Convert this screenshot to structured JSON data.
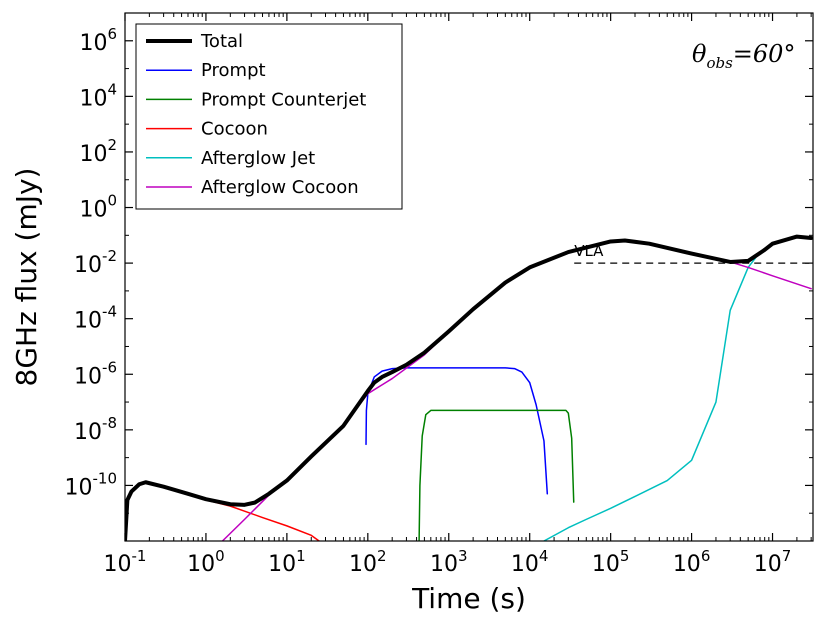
{
  "chart_data": {
    "type": "line",
    "xscale": "log",
    "yscale": "log",
    "xlabel": "Time (s)",
    "ylabel": "8GHz flux (mJy)",
    "xlim": [
      0.1,
      31622776
    ],
    "ylim": [
      1e-12,
      10000000.0
    ],
    "x_ticks": [
      {
        "value": 0.1,
        "base": "10",
        "exp": "-1"
      },
      {
        "value": 1,
        "base": "10",
        "exp": "0"
      },
      {
        "value": 10,
        "base": "10",
        "exp": "1"
      },
      {
        "value": 100,
        "base": "10",
        "exp": "2"
      },
      {
        "value": 1000,
        "base": "10",
        "exp": "3"
      },
      {
        "value": 10000,
        "base": "10",
        "exp": "4"
      },
      {
        "value": 100000,
        "base": "10",
        "exp": "5"
      },
      {
        "value": 1000000,
        "base": "10",
        "exp": "6"
      },
      {
        "value": 10000000,
        "base": "10",
        "exp": "7"
      }
    ],
    "y_ticks": [
      {
        "value": 1e-10,
        "base": "10",
        "exp": "-10"
      },
      {
        "value": 1e-08,
        "base": "10",
        "exp": "-8"
      },
      {
        "value": 1e-06,
        "base": "10",
        "exp": "-6"
      },
      {
        "value": 0.0001,
        "base": "10",
        "exp": "-4"
      },
      {
        "value": 0.01,
        "base": "10",
        "exp": "-2"
      },
      {
        "value": 1,
        "base": "10",
        "exp": "0"
      },
      {
        "value": 100,
        "base": "10",
        "exp": "2"
      },
      {
        "value": 10000,
        "base": "10",
        "exp": "4"
      },
      {
        "value": 1000000,
        "base": "10",
        "exp": "6"
      }
    ],
    "annotation": {
      "symbol": "θ",
      "sub": "obs",
      "text": "=60°"
    },
    "reference_line": {
      "label": "VLA",
      "y": 0.01,
      "x_start": 35481,
      "x_end": 31622776
    },
    "series": [
      {
        "name": "Total",
        "color": "#000000",
        "width": 4,
        "points": [
          [
            0.1,
            1e-12
          ],
          [
            0.107,
            3e-11
          ],
          [
            0.12,
            6e-11
          ],
          [
            0.15,
            1.1e-10
          ],
          [
            0.18,
            1.3e-10
          ],
          [
            0.3,
            9e-11
          ],
          [
            0.6,
            5e-11
          ],
          [
            1,
            3.2e-11
          ],
          [
            2,
            2.1e-11
          ],
          [
            3,
            2e-11
          ],
          [
            4,
            2.4e-11
          ],
          [
            6,
            5e-11
          ],
          [
            10,
            1.5e-10
          ],
          [
            20,
            1.1e-09
          ],
          [
            50,
            1.4e-08
          ],
          [
            100,
            2.5e-07
          ],
          [
            120,
            5e-07
          ],
          [
            150,
            8e-07
          ],
          [
            200,
            1.2e-06
          ],
          [
            300,
            2.2e-06
          ],
          [
            500,
            6e-06
          ],
          [
            1000,
            3.5e-05
          ],
          [
            2000,
            0.00022
          ],
          [
            5000,
            0.002
          ],
          [
            10000,
            0.007
          ],
          [
            30000,
            0.025
          ],
          [
            100000,
            0.06
          ],
          [
            150000,
            0.065
          ],
          [
            300000,
            0.05
          ],
          [
            1000000,
            0.022
          ],
          [
            3000000,
            0.011
          ],
          [
            5000000,
            0.012
          ],
          [
            8000000,
            0.03
          ],
          [
            10000000,
            0.05
          ],
          [
            20000000,
            0.09
          ],
          [
            30000000,
            0.08
          ]
        ]
      },
      {
        "name": "Prompt",
        "color": "#0000ff",
        "width": 1.5,
        "points": [
          [
            95,
            3e-09
          ],
          [
            96,
            5e-08
          ],
          [
            100,
            2e-07
          ],
          [
            120,
            8e-07
          ],
          [
            150,
            1.3e-06
          ],
          [
            200,
            1.6e-06
          ],
          [
            300,
            1.7e-06
          ],
          [
            1000,
            1.7e-06
          ],
          [
            5000,
            1.7e-06
          ],
          [
            6500,
            1.6e-06
          ],
          [
            8000,
            1.2e-06
          ],
          [
            10000,
            5e-07
          ],
          [
            12000,
            8e-08
          ],
          [
            15000,
            4e-09
          ],
          [
            16500,
            5e-11
          ]
        ]
      },
      {
        "name": "Prompt Counterjet",
        "color": "#008000",
        "width": 1.5,
        "points": [
          [
            430,
            1e-12
          ],
          [
            440,
            1e-10
          ],
          [
            470,
            6e-09
          ],
          [
            520,
            3.5e-08
          ],
          [
            600,
            5e-08
          ],
          [
            1000,
            5e-08
          ],
          [
            10000,
            5e-08
          ],
          [
            28000,
            5e-08
          ],
          [
            30000,
            4e-08
          ],
          [
            33000,
            5e-09
          ],
          [
            35000,
            2.5e-11
          ]
        ]
      },
      {
        "name": "Cocoon",
        "color": "#ff0000",
        "width": 1.5,
        "points": [
          [
            0.1,
            1e-12
          ],
          [
            0.107,
            3e-11
          ],
          [
            0.12,
            6e-11
          ],
          [
            0.15,
            1.1e-10
          ],
          [
            0.18,
            1.25e-10
          ],
          [
            0.3,
            9e-11
          ],
          [
            0.6,
            5e-11
          ],
          [
            1,
            3e-11
          ],
          [
            2,
            1.8e-11
          ],
          [
            5,
            7e-12
          ],
          [
            10,
            3.5e-12
          ],
          [
            20,
            1.6e-12
          ],
          [
            25,
            1e-12
          ]
        ]
      },
      {
        "name": "Afterglow Jet",
        "color": "#00bfbf",
        "width": 1.5,
        "points": [
          [
            15000,
            1e-12
          ],
          [
            30000,
            3e-12
          ],
          [
            50000,
            6e-12
          ],
          [
            100000,
            1.5e-11
          ],
          [
            200000,
            4e-11
          ],
          [
            500000,
            1.5e-10
          ],
          [
            1000000,
            8e-10
          ],
          [
            2000000,
            1e-07
          ],
          [
            3000000,
            0.0002
          ],
          [
            5000000,
            0.007
          ],
          [
            7000000,
            0.025
          ],
          [
            10000000,
            0.05
          ],
          [
            20000000,
            0.09
          ],
          [
            30000000,
            0.08
          ]
        ]
      },
      {
        "name": "Afterglow Cocoon",
        "color": "#bf00bf",
        "width": 1.5,
        "points": [
          [
            1.6,
            1e-12
          ],
          [
            3,
            6e-12
          ],
          [
            6,
            4.5e-11
          ],
          [
            10,
            1.5e-10
          ],
          [
            20,
            1.1e-09
          ],
          [
            50,
            1.4e-08
          ],
          [
            100,
            2e-07
          ],
          [
            200,
            7e-07
          ],
          [
            500,
            5e-06
          ],
          [
            1000,
            3.4e-05
          ],
          [
            2000,
            0.00022
          ],
          [
            5000,
            0.002
          ],
          [
            10000,
            0.007
          ],
          [
            30000,
            0.025
          ],
          [
            100000,
            0.06
          ],
          [
            150000,
            0.065
          ],
          [
            300000,
            0.05
          ],
          [
            1000000,
            0.022
          ],
          [
            3000000,
            0.011
          ],
          [
            5000000,
            0.007
          ],
          [
            10000000,
            0.0035
          ],
          [
            30000000,
            0.0012
          ]
        ]
      }
    ]
  }
}
